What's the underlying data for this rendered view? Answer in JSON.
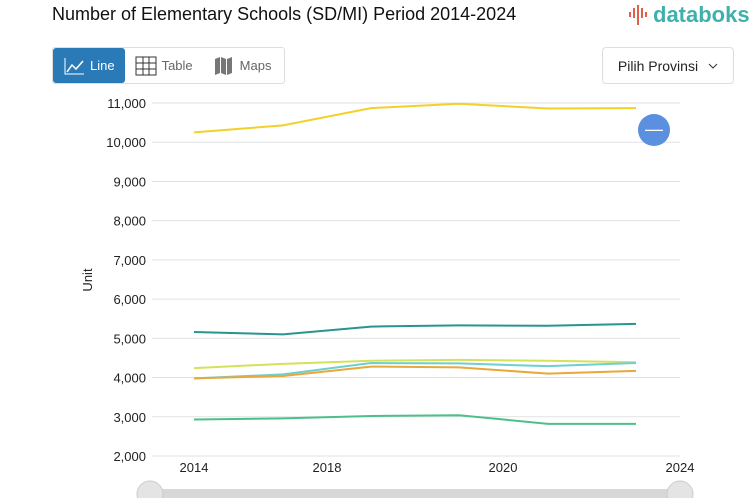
{
  "header": {
    "title": "Number of Elementary Schools (SD/MI) Period 2014-2024",
    "logo": "databoks"
  },
  "tabs": [
    {
      "label": "Line",
      "icon": "line-chart-icon",
      "active": true
    },
    {
      "label": "Table",
      "icon": "table-icon"
    },
    {
      "label": "Maps",
      "icon": "map-icon"
    }
  ],
  "province_select": {
    "label": "Pilih Provinsi",
    "icon": "chevron-down-icon"
  },
  "colors": {
    "accent": "#2a7ab8",
    "logo": "#3fb0ac"
  },
  "chart_data": {
    "type": "line",
    "title": "Number of Elementary Schools (SD/MI) Period 2014-2024",
    "ylabel": "Unit",
    "xlabel": "",
    "ylim": [
      2000,
      11000
    ],
    "yticks": [
      "2,000",
      "3,000",
      "4,000",
      "5,000",
      "6,000",
      "7,000",
      "8,000",
      "9,000",
      "10,000",
      "11,000"
    ],
    "xticks": [
      "2014",
      "2018",
      "2020",
      "2024"
    ],
    "grid": true,
    "series": [
      {
        "color": "#f2d12a",
        "values": [
          10250,
          10430,
          10870,
          10980,
          10860,
          10870
        ]
      },
      {
        "color": "#2a9490",
        "values": [
          5160,
          5100,
          5300,
          5330,
          5320,
          5370
        ]
      },
      {
        "color": "#d4e25a",
        "values": [
          4240,
          4350,
          4430,
          4450,
          4430,
          4390
        ]
      },
      {
        "color": "#6dcfd0",
        "values": [
          3980,
          4080,
          4370,
          4360,
          4290,
          4370
        ]
      },
      {
        "color": "#e8a83a",
        "values": [
          3980,
          4040,
          4280,
          4260,
          4100,
          4170
        ]
      },
      {
        "color": "#4cc08a",
        "values": [
          2930,
          2960,
          3020,
          3040,
          2820,
          2820
        ]
      }
    ]
  }
}
